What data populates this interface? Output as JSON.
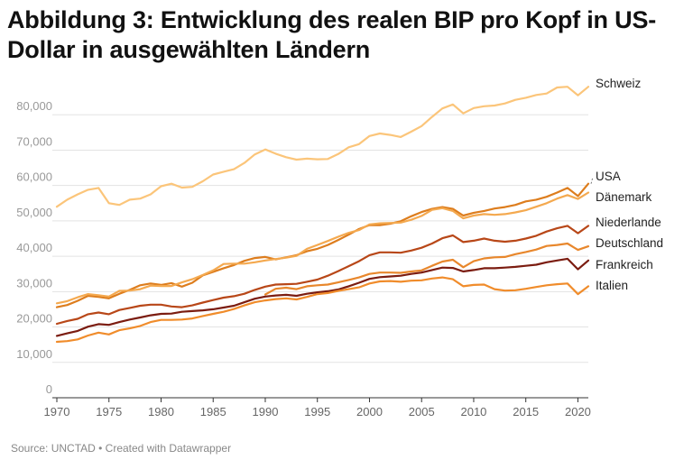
{
  "chart_data": {
    "type": "line",
    "title": "Abbildung 3: Entwicklung des realen BIP pro Kopf in US-Dollar in ausgewählten Ländern",
    "source": "Source: UNCTAD • Created with Datawrapper",
    "xlabel": "",
    "ylabel": "",
    "xlim": [
      1970,
      2021
    ],
    "ylim": [
      0,
      90000
    ],
    "x_ticks": [
      1970,
      1975,
      1980,
      1985,
      1990,
      1995,
      2000,
      2005,
      2010,
      2015,
      2020
    ],
    "x_tick_labels": [
      "1970",
      "1975",
      "1980",
      "1985",
      "1990",
      "1995",
      "2000",
      "2005",
      "2010",
      "2015",
      "2020"
    ],
    "y_ticks": [
      0,
      10000,
      20000,
      30000,
      40000,
      50000,
      60000,
      70000,
      80000
    ],
    "y_tick_labels": [
      "0",
      "10,000",
      "20,000",
      "30,000",
      "40,000",
      "50,000",
      "60,000",
      "70,000",
      "80,000"
    ],
    "grid": true,
    "legend": "direct labels at right end of lines",
    "series": [
      {
        "name": "Schweiz",
        "color": "#fbc57a",
        "start": 1970,
        "values": [
          54000,
          56000,
          57500,
          58800,
          59300,
          55000,
          54500,
          56000,
          56300,
          57500,
          59800,
          60500,
          59400,
          59600,
          61200,
          63100,
          63900,
          64600,
          66400,
          68800,
          70200,
          69000,
          68000,
          67300,
          67600,
          67400,
          67500,
          68900,
          70800,
          71700,
          74000,
          74700,
          74300,
          73700,
          75200,
          76800,
          79400,
          81800,
          82900,
          80400,
          81900,
          82400,
          82600,
          83200,
          84200,
          84800,
          85600,
          86000,
          87700,
          87900,
          85500,
          87900
        ]
      },
      {
        "name": "USA",
        "color": "#dd7d1d",
        "start": 1970,
        "values": [
          25600,
          26200,
          27400,
          28800,
          28500,
          28100,
          29400,
          30500,
          31800,
          32300,
          31900,
          32400,
          31400,
          32500,
          34600,
          35600,
          36600,
          37500,
          38700,
          39500,
          39800,
          39100,
          39700,
          40300,
          41400,
          42100,
          43200,
          44600,
          46100,
          47700,
          48800,
          48800,
          49200,
          49900,
          51300,
          52500,
          53400,
          53900,
          53400,
          51500,
          52300,
          52800,
          53500,
          53900,
          54500,
          55500,
          56000,
          56800,
          58000,
          59300,
          57000,
          60500
        ]
      },
      {
        "name": "Dänemark",
        "color": "#f4a94f",
        "start": 1970,
        "values": [
          26700,
          27300,
          28400,
          29300,
          29000,
          28600,
          30200,
          30300,
          30700,
          31700,
          31600,
          31600,
          32600,
          33500,
          34700,
          36000,
          37800,
          37900,
          37900,
          38300,
          38800,
          39200,
          39600,
          40100,
          42100,
          43200,
          44300,
          45500,
          46600,
          47400,
          49000,
          49300,
          49400,
          49500,
          50300,
          51400,
          53100,
          53600,
          52800,
          50700,
          51500,
          51900,
          51700,
          51900,
          52400,
          53000,
          54000,
          55000,
          56300,
          57300,
          56200,
          58000
        ]
      },
      {
        "name": "Niederlande",
        "color": "#b84718",
        "start": 1970,
        "values": [
          20900,
          21700,
          22300,
          23600,
          24100,
          23600,
          24800,
          25400,
          26000,
          26300,
          26300,
          25800,
          25600,
          26100,
          26900,
          27600,
          28300,
          28700,
          29400,
          30500,
          31400,
          32000,
          32100,
          32200,
          32800,
          33400,
          34500,
          35800,
          37200,
          38600,
          40300,
          41100,
          41100,
          41000,
          41600,
          42400,
          43600,
          45100,
          45900,
          44000,
          44400,
          45000,
          44400,
          44100,
          44400,
          45000,
          45800,
          47000,
          47900,
          48600,
          46500,
          48600
        ]
      },
      {
        "name": "Deutschland",
        "color": "#e8872c",
        "start": 1990,
        "values": [
          29200,
          30800,
          31100,
          30700,
          31500,
          31800,
          32000,
          32600,
          33300,
          34000,
          35000,
          35400,
          35400,
          35300,
          35700,
          36000,
          37300,
          38500,
          39000,
          36900,
          38600,
          39400,
          39700,
          39800,
          40600,
          41200,
          41900,
          42900,
          43200,
          43600,
          41800,
          42800
        ]
      },
      {
        "name": "Frankreich",
        "color": "#7b1c10",
        "start": 1970,
        "values": [
          17500,
          18200,
          18900,
          20100,
          20800,
          20600,
          21400,
          22100,
          22700,
          23300,
          23700,
          23800,
          24300,
          24500,
          24700,
          25000,
          25500,
          26000,
          27000,
          28000,
          28600,
          28900,
          29100,
          28800,
          29400,
          29800,
          30100,
          30600,
          31500,
          32500,
          33600,
          34100,
          34300,
          34500,
          35000,
          35400,
          36100,
          36800,
          36700,
          35700,
          36100,
          36600,
          36600,
          36800,
          37000,
          37300,
          37600,
          38300,
          38800,
          39300,
          36300,
          38800
        ]
      },
      {
        "name": "Italien",
        "color": "#f08c2b",
        "start": 1970,
        "values": [
          15800,
          16000,
          16500,
          17600,
          18400,
          17900,
          19100,
          19600,
          20300,
          21400,
          22000,
          22000,
          22100,
          22400,
          23100,
          23700,
          24300,
          25100,
          26100,
          27000,
          27500,
          27900,
          28100,
          27800,
          28500,
          29300,
          29600,
          30200,
          30700,
          31200,
          32300,
          32900,
          33000,
          32800,
          33100,
          33200,
          33700,
          34000,
          33500,
          31500,
          31900,
          32000,
          30700,
          30300,
          30400,
          30800,
          31300,
          31800,
          32100,
          32300,
          29300,
          31500
        ]
      }
    ]
  }
}
